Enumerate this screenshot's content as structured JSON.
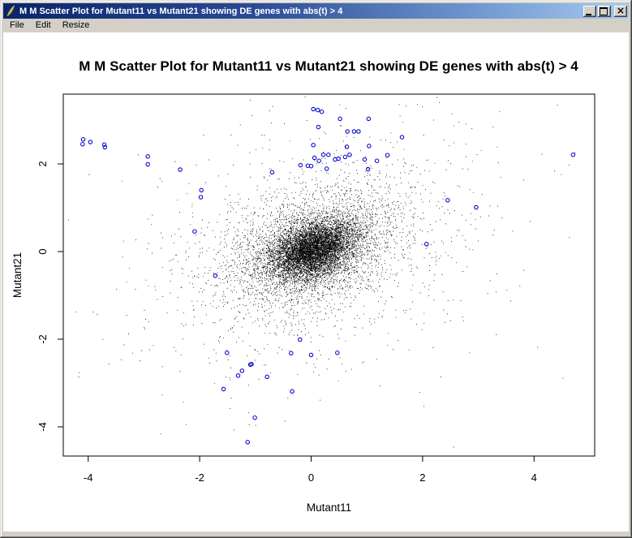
{
  "window": {
    "title": "M M Scatter Plot for Mutant11 vs Mutant21 showing DE genes with abs(t) > 4",
    "icon": "quill-icon",
    "buttons": {
      "minimize": "minimize",
      "maximize": "maximize",
      "close": "close"
    }
  },
  "menu": {
    "items": [
      {
        "label": "File"
      },
      {
        "label": "Edit"
      },
      {
        "label": "Resize"
      }
    ]
  },
  "colors": {
    "titlebar_left": "#0A246A",
    "titlebar_right": "#A6CAF0",
    "chrome": "#D4D0C8",
    "client_bg": "#FFFFFF",
    "point_color": "#000000",
    "de_color": "#0A0AD0"
  },
  "chart_data": {
    "type": "scatter",
    "title": "M M Scatter Plot for Mutant11 vs Mutant21 showing DE genes with abs(t) > 4",
    "xlabel": "Mutant11",
    "ylabel": "Mutant21",
    "xlim": [
      -4.45,
      5.09
    ],
    "ylim": [
      -4.67,
      3.59
    ],
    "x_ticks": [
      -4,
      -2,
      0,
      2,
      4
    ],
    "x_tick_labels": [
      "-4",
      "-2",
      "0",
      "2",
      "4"
    ],
    "y_ticks": [
      -4,
      -2,
      0,
      2
    ],
    "y_tick_labels": [
      "-4",
      "-2",
      "0",
      "2"
    ],
    "grid": false,
    "legend": null,
    "point_color": "#000000",
    "de_color": "#0A0AD0",
    "de_points": [
      [
        -4.09,
        2.56
      ],
      [
        -4.1,
        2.45
      ],
      [
        -3.96,
        2.5
      ],
      [
        -3.71,
        2.44
      ],
      [
        -3.7,
        2.38
      ],
      [
        -2.93,
        2.17
      ],
      [
        -2.93,
        1.99
      ],
      [
        -2.35,
        1.87
      ],
      [
        -1.97,
        1.4
      ],
      [
        -1.98,
        1.24
      ],
      [
        -2.09,
        0.46
      ],
      [
        -1.72,
        -0.55
      ],
      [
        -0.7,
        1.81
      ],
      [
        0.04,
        3.25
      ],
      [
        0.12,
        3.23
      ],
      [
        0.19,
        3.19
      ],
      [
        0.52,
        3.03
      ],
      [
        1.03,
        3.03
      ],
      [
        0.13,
        2.84
      ],
      [
        0.65,
        2.74
      ],
      [
        0.77,
        2.74
      ],
      [
        0.85,
        2.74
      ],
      [
        1.63,
        2.61
      ],
      [
        0.04,
        2.43
      ],
      [
        0.64,
        2.39
      ],
      [
        1.04,
        2.41
      ],
      [
        0.06,
        2.14
      ],
      [
        0.22,
        2.21
      ],
      [
        0.31,
        2.21
      ],
      [
        0.14,
        2.07
      ],
      [
        0.43,
        2.1
      ],
      [
        0.49,
        2.12
      ],
      [
        0.61,
        2.16
      ],
      [
        0.69,
        2.21
      ],
      [
        0.96,
        2.1
      ],
      [
        1.18,
        2.07
      ],
      [
        1.37,
        2.2
      ],
      [
        -0.19,
        1.97
      ],
      [
        -0.06,
        1.96
      ],
      [
        0.0,
        1.95
      ],
      [
        0.28,
        1.89
      ],
      [
        1.02,
        1.88
      ],
      [
        4.7,
        2.21
      ],
      [
        2.45,
        1.17
      ],
      [
        2.96,
        1.01
      ],
      [
        2.07,
        0.17
      ],
      [
        -1.51,
        -2.31
      ],
      [
        -0.2,
        -2.01
      ],
      [
        -0.36,
        -2.32
      ],
      [
        0.0,
        -2.36
      ],
      [
        0.47,
        -2.31
      ],
      [
        -1.09,
        -2.58
      ],
      [
        -1.07,
        -2.57
      ],
      [
        -1.24,
        -2.72
      ],
      [
        -1.31,
        -2.83
      ],
      [
        -0.79,
        -2.86
      ],
      [
        -1.57,
        -3.14
      ],
      [
        -0.34,
        -3.19
      ],
      [
        -1.01,
        -3.79
      ],
      [
        -1.14,
        -4.35
      ]
    ],
    "background_cloud": {
      "description": "dense cloud of non-DE genes centered near (0,0)",
      "seed": 1337,
      "n": 10500,
      "center": [
        0.03,
        0.03
      ],
      "components": [
        {
          "weight": 0.58,
          "sx": 0.37,
          "sy": 0.33,
          "rho": 0.33
        },
        {
          "weight": 0.27,
          "sx": 0.75,
          "sy": 0.66,
          "rho": 0.33
        },
        {
          "weight": 0.11,
          "sx": 1.3,
          "sy": 1.12,
          "rho": 0.3
        },
        {
          "weight": 0.04,
          "sx": 2.05,
          "sy": 1.75,
          "rho": 0.25
        }
      ]
    }
  }
}
